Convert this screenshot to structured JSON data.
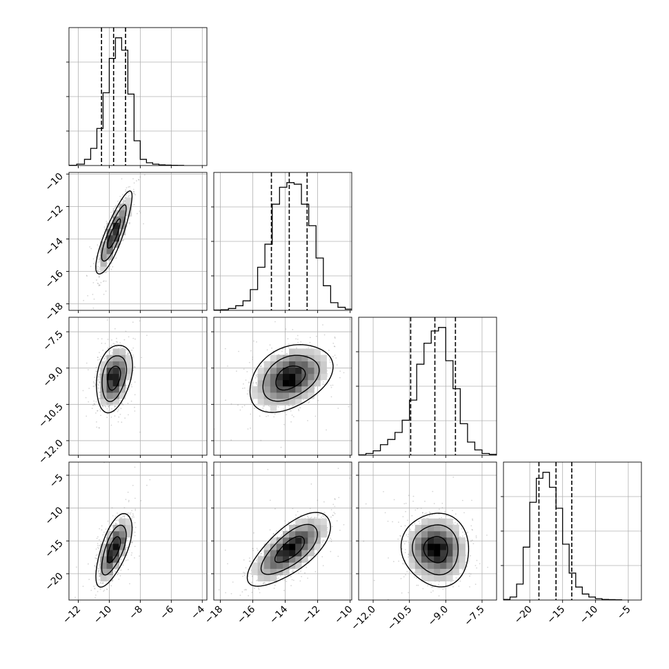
{
  "chart_data": {
    "type": "corner",
    "grid": true,
    "parameters": [
      {
        "range": [
          -12.6,
          -3.7
        ],
        "ticks": [
          -12,
          -10,
          -8,
          -6,
          -4
        ]
      },
      {
        "range": [
          -18.4,
          -9.9
        ],
        "ticks": [
          -18,
          -16,
          -14,
          -12,
          -10
        ]
      },
      {
        "range": [
          -12.6,
          -6.9
        ],
        "ticks": [
          -12.0,
          -10.5,
          -9.0,
          -7.5
        ]
      },
      {
        "range": [
          -24.0,
          -3.0
        ],
        "ticks": [
          -20,
          -15,
          -10,
          -5
        ]
      }
    ],
    "tick_labels": {
      "p0": [
        "−12",
        "−10",
        "−8",
        "−6",
        "−4"
      ],
      "p1": [
        "−18",
        "−16",
        "−14",
        "−12",
        "−10"
      ],
      "p2": [
        "−12.0",
        "−10.5",
        "−9.0",
        "−7.5"
      ],
      "p3": [
        "−20",
        "−15",
        "−10",
        "−5"
      ]
    },
    "histograms": [
      {
        "param": 0,
        "bin_edges": [
          -12.6,
          -12.1,
          -11.6,
          -11.2,
          -10.8,
          -10.4,
          -10.0,
          -9.6,
          -9.2,
          -8.8,
          -8.4,
          -8.0,
          -7.6,
          -7.2,
          -6.8,
          -6.4,
          -6.0,
          -5.6,
          -5.2
        ],
        "counts": [
          2,
          10,
          45,
          125,
          270,
          530,
          780,
          930,
          840,
          520,
          180,
          45,
          20,
          10,
          5,
          3,
          2,
          1
        ],
        "quantiles": [
          -10.5,
          -9.72,
          -8.95
        ]
      },
      {
        "param": 1,
        "bin_edges": [
          -18.4,
          -17.95,
          -17.5,
          -17.05,
          -16.6,
          -16.15,
          -15.7,
          -15.25,
          -14.8,
          -14.35,
          -13.9,
          -13.45,
          -13.0,
          -12.55,
          -12.1,
          -11.65,
          -11.2,
          -10.75,
          -10.3,
          -9.85
        ],
        "counts": [
          2,
          4,
          12,
          30,
          62,
          135,
          280,
          430,
          690,
          800,
          830,
          820,
          690,
          550,
          340,
          160,
          50,
          20,
          8
        ],
        "quantiles": [
          -14.85,
          -13.75,
          -12.65
        ]
      },
      {
        "param": 2,
        "bin_edges": [
          -12.6,
          -12.3,
          -12.0,
          -11.7,
          -11.4,
          -11.1,
          -10.8,
          -10.5,
          -10.2,
          -9.9,
          -9.6,
          -9.3,
          -9.0,
          -8.7,
          -8.4,
          -8.1,
          -7.8,
          -7.5,
          -7.2,
          -6.9
        ],
        "counts": [
          2,
          10,
          25,
          60,
          90,
          130,
          200,
          315,
          520,
          640,
          710,
          730,
          540,
          380,
          180,
          75,
          30,
          10,
          5
        ],
        "quantiles": [
          -10.45,
          -9.45,
          -8.6
        ]
      },
      {
        "param": 3,
        "bin_edges": [
          -24.0,
          -23.0,
          -22.0,
          -21.0,
          -20.0,
          -19.0,
          -18.0,
          -17.0,
          -16.0,
          -15.0,
          -14.0,
          -13.0,
          -12.0,
          -11.0,
          -10.0,
          -9.0,
          -8.0,
          -7.0,
          -6.0
        ],
        "counts": [
          3,
          15,
          80,
          265,
          490,
          610,
          640,
          565,
          460,
          280,
          135,
          65,
          30,
          15,
          7,
          3,
          2,
          1
        ],
        "quantiles": [
          -18.6,
          -16.0,
          -13.6
        ]
      }
    ],
    "pairs": [
      {
        "x": 0,
        "y": 1,
        "mean": [
          -9.7,
          -13.7
        ],
        "sd": [
          0.5,
          1.1
        ],
        "rho": 0.85
      },
      {
        "x": 0,
        "y": 2,
        "mean": [
          -9.7,
          -9.4
        ],
        "sd": [
          0.5,
          0.6
        ],
        "rho": 0.3
      },
      {
        "x": 1,
        "y": 2,
        "mean": [
          -13.7,
          -9.4
        ],
        "sd": [
          1.1,
          0.6
        ],
        "rho": 0.35
      },
      {
        "x": 0,
        "y": 3,
        "mean": [
          -9.7,
          -16.3
        ],
        "sd": [
          0.5,
          2.4
        ],
        "rho": 0.65
      },
      {
        "x": 1,
        "y": 3,
        "mean": [
          -13.7,
          -16.3
        ],
        "sd": [
          1.1,
          2.4
        ],
        "rho": 0.7
      },
      {
        "x": 2,
        "y": 3,
        "mean": [
          -9.4,
          -16.3
        ],
        "sd": [
          0.6,
          2.4
        ],
        "rho": -0.05
      }
    ]
  }
}
